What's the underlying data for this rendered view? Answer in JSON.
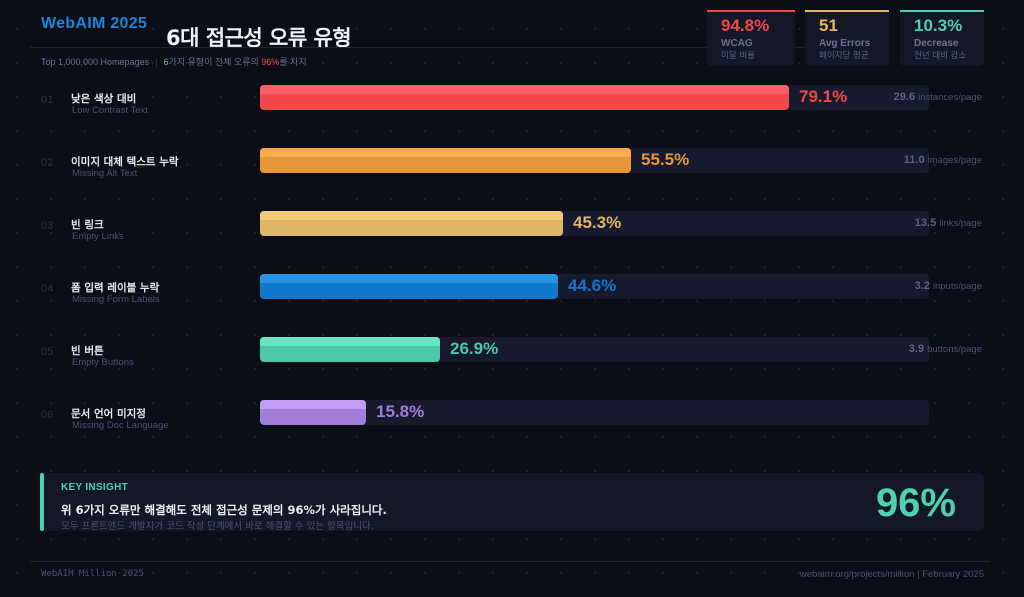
{
  "header": {
    "brand": "WebAIM 2025",
    "title": "6대 접근성 오류 유형",
    "subtitle_source": "Top 1,000,000 Homepages",
    "subtitle_sep": "|",
    "subtitle_count": "6",
    "subtitle_mid": "가지 유형이 전체 오류의 ",
    "subtitle_pct": "96%",
    "subtitle_end": "를 차지"
  },
  "stats": [
    {
      "value": "94.8%",
      "label": "WCAG",
      "sublabel": "미달 비율",
      "color": "#f0484b"
    },
    {
      "value": "51",
      "label": "Avg Errors",
      "sublabel": "페이지당 평균",
      "color": "#e8b860"
    },
    {
      "value": "10.3%",
      "label": "Decrease",
      "sublabel": "전년 대비 감소",
      "color": "#4fd1b0"
    }
  ],
  "chart_data": {
    "type": "bar",
    "orientation": "horizontal",
    "title": "6대 접근성 오류 유형",
    "subtitle": "Top 1,000,000 Homepages | 6가지 유형이 전체 오류의 96%를 차지",
    "xlabel": "",
    "ylabel": "",
    "xlim": [
      0,
      100
    ],
    "grid": false,
    "categories": [
      "Low Contrast Text",
      "Missing Alt Text",
      "Empty Links",
      "Missing Form Labels",
      "Empty Buttons",
      "Missing Doc Language"
    ],
    "values": [
      79.1,
      55.5,
      45.3,
      44.6,
      26.9,
      15.8
    ],
    "unit": "%",
    "rows": [
      {
        "index": "01",
        "name_ko": "낮은 색상 대비",
        "name_en": "Low Contrast Text",
        "pct": 79.1,
        "pct_label": "79.1%",
        "metric_value": "29.6",
        "metric_unit": "instances/page",
        "color": "#f0484b",
        "color_hi": "#ff6166"
      },
      {
        "index": "02",
        "name_ko": "이미지 대체 텍스트 누락",
        "name_en": "Missing Alt Text",
        "pct": 55.5,
        "pct_label": "55.5%",
        "metric_value": "11.0",
        "metric_unit": "images/page",
        "color": "#e8963a",
        "color_hi": "#fbad53"
      },
      {
        "index": "03",
        "name_ko": "빈 링크",
        "name_en": "Empty Links",
        "pct": 45.3,
        "pct_label": "45.3%",
        "metric_value": "13.5",
        "metric_unit": "links/page",
        "color": "#e0b567",
        "color_hi": "#f4cc7e"
      },
      {
        "index": "04",
        "name_ko": "폼 입력 레이블 누락",
        "name_en": "Missing Form Labels",
        "pct": 44.6,
        "pct_label": "44.6%",
        "metric_value": "3.2",
        "metric_unit": "inputs/page",
        "color": "#1178cc",
        "color_hi": "#2a96e8"
      },
      {
        "index": "05",
        "name_ko": "빈 버튼",
        "name_en": "Empty Buttons",
        "pct": 26.9,
        "pct_label": "26.9%",
        "metric_value": "3.9",
        "metric_unit": "buttons/page",
        "color": "#4cc7a8",
        "color_hi": "#6ee6c6"
      },
      {
        "index": "06",
        "name_ko": "문서 언어 미지정",
        "name_en": "Missing Doc Language",
        "pct": 15.8,
        "pct_label": "15.8%",
        "metric_value": "",
        "metric_unit": "",
        "color": "#a07ed8",
        "color_hi": "#c2a2f7"
      }
    ]
  },
  "insight": {
    "kicker": "KEY INSIGHT",
    "headline": "위 6가지 오류만 해결해도 전체 접근성 문제의 96%가 사라집니다.",
    "description": "모두 프론트엔드 개발자가 코드 작성 단계에서 바로 해결할 수 있는 항목입니다.",
    "big_value": "96%",
    "accent": "#4fd1b0"
  },
  "footer": {
    "left": "WebAIM Million 2025",
    "right": "webaim.org/projects/million | February 2025"
  }
}
